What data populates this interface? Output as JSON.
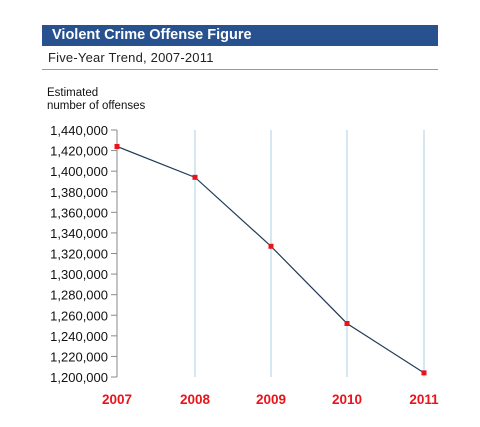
{
  "chart_data": {
    "type": "line",
    "title": "Violent Crime Offense Figure",
    "subtitle": "Five-Year Trend, 2007-2011",
    "ylabel": "Estimated\nnumber of offenses",
    "xlabel": "",
    "categories": [
      "2007",
      "2008",
      "2009",
      "2010",
      "2011"
    ],
    "values": [
      1424000,
      1394000,
      1327000,
      1252000,
      1204000
    ],
    "ylim": [
      1200000,
      1440000
    ],
    "yticks": [
      "1,440,000",
      "1,420,000",
      "1,400,000",
      "1,380,000",
      "1,360,000",
      "1,340,000",
      "1,320,000",
      "1,300,000",
      "1,280,000",
      "1,260,000",
      "1,240,000",
      "1,220,000",
      "1,200,000"
    ],
    "grid": "vertical",
    "colors": {
      "title_bg": "#27528f",
      "line": "#1f3b5a",
      "marker": "#e8141b",
      "xtick": "#e8141b",
      "grid": "#a9cfe6"
    }
  }
}
